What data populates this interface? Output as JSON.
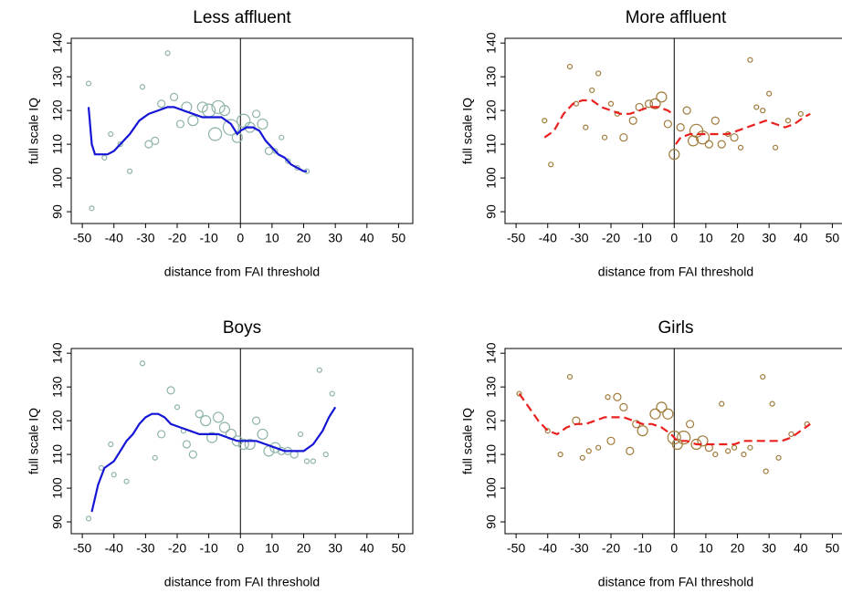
{
  "chart_data": [
    {
      "type": "scatter",
      "title": "Less affluent",
      "x_label": "distance from FAI threshold",
      "y_label": "full scale IQ",
      "xlim": [
        -53.5,
        54.5
      ],
      "ylim": [
        86.5,
        141.4
      ],
      "xticks": [
        -50,
        -40,
        -30,
        -20,
        -10,
        0,
        10,
        20,
        30,
        40,
        50
      ],
      "yticks": [
        90,
        100,
        110,
        120,
        130,
        140
      ],
      "vline": 0,
      "series": [
        {
          "kind": "scatter",
          "color": "#8fb3a8",
          "x": [
            -48,
            -47,
            -43,
            -41,
            -38,
            -35,
            -31,
            -29,
            -27,
            -25,
            -23,
            -21,
            -19,
            -17,
            -15,
            -12,
            -10,
            -8,
            -7,
            -5,
            -3,
            -1,
            1,
            3,
            5,
            7,
            9,
            11,
            13,
            15,
            18,
            21
          ],
          "values": [
            128,
            91,
            106,
            113,
            110,
            102,
            127,
            110,
            111,
            122,
            137,
            124,
            116,
            121,
            117,
            121,
            120,
            113,
            121,
            120,
            115,
            112,
            117,
            115,
            119,
            116,
            108,
            108,
            112,
            105,
            103,
            102
          ],
          "sizes": [
            1,
            1,
            1,
            1,
            1,
            1,
            1,
            2,
            2,
            2,
            1,
            2,
            2,
            3,
            3,
            3,
            4,
            4,
            4,
            3,
            5,
            3,
            4,
            3,
            2,
            3,
            2,
            1,
            1,
            1,
            1,
            1
          ]
        },
        {
          "kind": "line",
          "color": "#1515d6",
          "dashed": false,
          "x": [
            -48,
            -47,
            -46,
            -44,
            -42,
            -40,
            -38,
            -35,
            -32,
            -29,
            -26,
            -23,
            -21,
            -18,
            -15,
            -12,
            -9,
            -6,
            -3,
            -1,
            0,
            2,
            4,
            6,
            8,
            10,
            12,
            14,
            16,
            18,
            20,
            21
          ],
          "values": [
            121,
            110,
            107,
            107,
            107,
            108,
            110,
            113,
            117,
            119,
            120,
            121,
            121,
            120,
            119,
            118,
            118,
            118,
            116,
            113,
            114,
            115,
            115,
            114,
            111,
            109,
            107,
            106,
            104,
            103,
            102,
            102
          ]
        }
      ]
    },
    {
      "type": "scatter",
      "title": "More affluent",
      "x_label": "distance from FAI threshold",
      "y_label": "full scale IQ",
      "xlim": [
        -53.5,
        54.5
      ],
      "ylim": [
        86.5,
        141.4
      ],
      "xticks": [
        -50,
        -40,
        -30,
        -20,
        -10,
        0,
        10,
        20,
        30,
        40,
        50
      ],
      "yticks": [
        90,
        100,
        110,
        120,
        130,
        140
      ],
      "vline": 0,
      "series": [
        {
          "kind": "scatter",
          "color": "#a07a3a",
          "x": [
            -41,
            -39,
            -33,
            -31,
            -28,
            -26,
            -24,
            -22,
            -20,
            -18,
            -16,
            -13,
            -11,
            -8,
            -6,
            -4,
            -2,
            0,
            2,
            4,
            6,
            7,
            9,
            11,
            13,
            15,
            17,
            19,
            21,
            24,
            26,
            28,
            30,
            32,
            36,
            40
          ],
          "values": [
            117,
            104,
            133,
            122,
            115,
            126,
            131,
            112,
            122,
            119,
            112,
            117,
            121,
            122,
            122,
            124,
            116,
            107,
            115,
            120,
            111,
            114,
            112,
            110,
            117,
            110,
            113,
            112,
            109,
            135,
            121,
            120,
            125,
            109,
            117,
            119
          ],
          "sizes": [
            1,
            1,
            1,
            1,
            1,
            1,
            1,
            1,
            1,
            1,
            2,
            2,
            2,
            2,
            3,
            3,
            2,
            3,
            2,
            2,
            3,
            4,
            4,
            2,
            2,
            2,
            1,
            2,
            1,
            1,
            1,
            1,
            1,
            1,
            1,
            1
          ]
        },
        {
          "kind": "line",
          "color": "#e8201e",
          "dashed": true,
          "x": [
            -41,
            -38,
            -35,
            -32,
            -29,
            -26,
            -23,
            -20,
            -17,
            -14,
            -11,
            -8,
            -5,
            -2,
            -0.5,
            0,
            0.5,
            2,
            5,
            8,
            11,
            14,
            17,
            20,
            23,
            26,
            29,
            32,
            35,
            38,
            41,
            43
          ],
          "values": [
            112,
            114,
            119,
            122,
            123,
            123,
            121,
            120,
            119,
            119,
            120,
            121,
            121,
            120,
            119,
            null,
            110,
            112,
            113,
            113,
            113,
            113,
            113,
            114,
            115,
            116,
            117,
            116,
            115,
            116,
            118,
            119
          ]
        }
      ]
    },
    {
      "type": "scatter",
      "title": "Boys",
      "x_label": "distance from FAI threshold",
      "y_label": "full scale IQ",
      "xlim": [
        -53.5,
        54.5
      ],
      "ylim": [
        86.5,
        141.4
      ],
      "xticks": [
        -50,
        -40,
        -30,
        -20,
        -10,
        0,
        10,
        20,
        30,
        40,
        50
      ],
      "yticks": [
        90,
        100,
        110,
        120,
        130,
        140
      ],
      "vline": 0,
      "series": [
        {
          "kind": "scatter",
          "color": "#8fb3a8",
          "x": [
            -48,
            -44,
            -41,
            -40,
            -36,
            -31,
            -27,
            -25,
            -22,
            -20,
            -18,
            -17,
            -15,
            -13,
            -11,
            -9,
            -7,
            -5,
            -3,
            -1,
            1,
            3,
            5,
            7,
            9,
            11,
            13,
            15,
            17,
            19,
            21,
            23,
            25,
            27,
            29
          ],
          "values": [
            91,
            106,
            113,
            104,
            102,
            137,
            109,
            116,
            129,
            124,
            117,
            113,
            110,
            122,
            120,
            115,
            121,
            118,
            116,
            114,
            113,
            113,
            120,
            116,
            111,
            112,
            111,
            111,
            110,
            116,
            108,
            108,
            135,
            110,
            128
          ],
          "sizes": [
            1,
            1,
            1,
            1,
            1,
            1,
            1,
            2,
            2,
            1,
            1,
            2,
            2,
            2,
            3,
            3,
            3,
            3,
            3,
            3,
            3,
            3,
            2,
            3,
            3,
            3,
            2,
            2,
            2,
            1,
            1,
            1,
            1,
            1,
            1
          ]
        },
        {
          "kind": "line",
          "color": "#1515d6",
          "dashed": false,
          "x": [
            -47,
            -45,
            -43,
            -40,
            -38,
            -36,
            -34,
            -32,
            -30,
            -28,
            -26,
            -24,
            -22,
            -19,
            -16,
            -13,
            -10,
            -7,
            -4,
            -1,
            2,
            5,
            8,
            11,
            14,
            17,
            20,
            23,
            26,
            28,
            30
          ],
          "values": [
            93,
            101,
            106,
            108,
            111,
            114,
            116,
            119,
            121,
            122,
            122,
            121,
            119,
            118,
            117,
            116,
            116,
            116,
            115,
            114,
            114,
            114,
            113,
            112,
            111,
            111,
            111,
            113,
            117,
            121,
            124
          ]
        }
      ]
    },
    {
      "type": "scatter",
      "title": "Girls",
      "x_label": "distance from FAI threshold",
      "y_label": "full scale IQ",
      "xlim": [
        -53.5,
        54.5
      ],
      "ylim": [
        86.5,
        141.4
      ],
      "xticks": [
        -50,
        -40,
        -30,
        -20,
        -10,
        0,
        10,
        20,
        30,
        40,
        50
      ],
      "yticks": [
        90,
        100,
        110,
        120,
        130,
        140
      ],
      "vline": 0,
      "series": [
        {
          "kind": "scatter",
          "color": "#a07a3a",
          "x": [
            -49,
            -40,
            -36,
            -33,
            -31,
            -29,
            -27,
            -24,
            -21,
            -20,
            -18,
            -16,
            -14,
            -12,
            -10,
            -6,
            -4,
            -2,
            0,
            1,
            3,
            5,
            7,
            9,
            11,
            13,
            15,
            17,
            19,
            22,
            24,
            28,
            29,
            31,
            33,
            37,
            42
          ],
          "values": [
            128,
            117,
            110,
            133,
            120,
            109,
            111,
            112,
            127,
            114,
            127,
            124,
            111,
            119,
            117,
            122,
            124,
            122,
            115,
            113,
            115,
            119,
            113,
            114,
            112,
            110,
            125,
            111,
            112,
            110,
            112,
            133,
            105,
            125,
            109,
            116,
            119
          ],
          "sizes": [
            1,
            1,
            1,
            1,
            2,
            1,
            1,
            1,
            1,
            2,
            2,
            2,
            2,
            2,
            3,
            3,
            3,
            3,
            4,
            3,
            4,
            2,
            3,
            3,
            2,
            1,
            1,
            1,
            1,
            1,
            1,
            1,
            1,
            1,
            1,
            1,
            1
          ]
        },
        {
          "kind": "line",
          "color": "#e8201e",
          "dashed": true,
          "x": [
            -49,
            -46,
            -43,
            -40,
            -37,
            -34,
            -31,
            -28,
            -25,
            -22,
            -19,
            -16,
            -13,
            -10,
            -7,
            -4,
            -1,
            1,
            4,
            7,
            10,
            13,
            16,
            19,
            22,
            25,
            28,
            31,
            34,
            37,
            40,
            43
          ],
          "values": [
            128,
            124,
            120,
            117,
            116,
            118,
            119,
            119,
            120,
            121,
            121,
            121,
            120,
            119,
            119,
            118,
            116,
            114,
            114,
            113,
            113,
            113,
            113,
            113,
            114,
            114,
            114,
            114,
            114,
            115,
            117,
            119
          ]
        }
      ]
    }
  ]
}
